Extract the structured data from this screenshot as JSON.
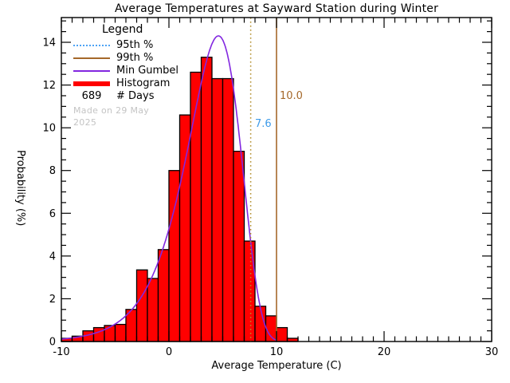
{
  "chart_data": {
    "type": "bar",
    "subtype": "histogram-with-distribution-curve",
    "title": "Average Temperatures at Sayward Station during Winter",
    "xlabel": "Average Temperature (C)",
    "ylabel": "Probability (%)",
    "xlim": [
      -10,
      30
    ],
    "ylim": [
      0,
      15.2
    ],
    "x_major_ticks": [
      -10,
      0,
      10,
      20,
      30
    ],
    "x_minor_step": 1,
    "y_major_ticks": [
      0,
      2,
      4,
      6,
      8,
      10,
      12,
      14
    ],
    "y_minor_step": 0.5,
    "grid": "off",
    "histogram": {
      "name": "Histogram",
      "bin_width": 1,
      "bin_left_edges": [
        -10,
        -9,
        -8,
        -7,
        -6,
        -5,
        -4,
        -3,
        -2,
        -1,
        0,
        1,
        2,
        3,
        4,
        5,
        6,
        7,
        8,
        9,
        10,
        11
      ],
      "heights_percent": [
        0.15,
        0.25,
        0.5,
        0.65,
        0.75,
        0.8,
        1.5,
        3.35,
        2.95,
        4.3,
        8.0,
        10.6,
        12.6,
        13.3,
        12.3,
        12.3,
        8.9,
        4.7,
        1.65,
        1.2,
        0.65,
        0.15
      ],
      "fill_color": "#FF0000",
      "edge_color": "#000000"
    },
    "gumbel_curve": {
      "name": "Min Gumbel",
      "mode_mu": 4.6,
      "beta": 2.5,
      "peak_percent": 14.3,
      "draw_range": [
        -10,
        10.1
      ],
      "color": "#8227E0"
    },
    "percentiles": {
      "p95": {
        "value": 7.6,
        "label": "7.6",
        "line_style": "dotted",
        "line_color": "#B28E2C",
        "label_color": "#3D9BE9"
      },
      "p99": {
        "value": 10.0,
        "label": "10.0",
        "line_style": "solid",
        "line_color": "#A5682A",
        "label_color": "#A5682A"
      }
    },
    "legend_position": "upper-left"
  },
  "legend": {
    "title": "Legend",
    "items": [
      {
        "swatch": "dotted-blue-line",
        "label": "95th %"
      },
      {
        "swatch": "solid-brown-line",
        "label": "99th %"
      },
      {
        "swatch": "solid-violet-line",
        "label": "Min Gumbel"
      },
      {
        "swatch": "thick-red-line",
        "label": "Histogram"
      },
      {
        "swatch": "count",
        "count": "689",
        "label": "# Days"
      }
    ],
    "made_on": "Made on 29 May 2025"
  }
}
